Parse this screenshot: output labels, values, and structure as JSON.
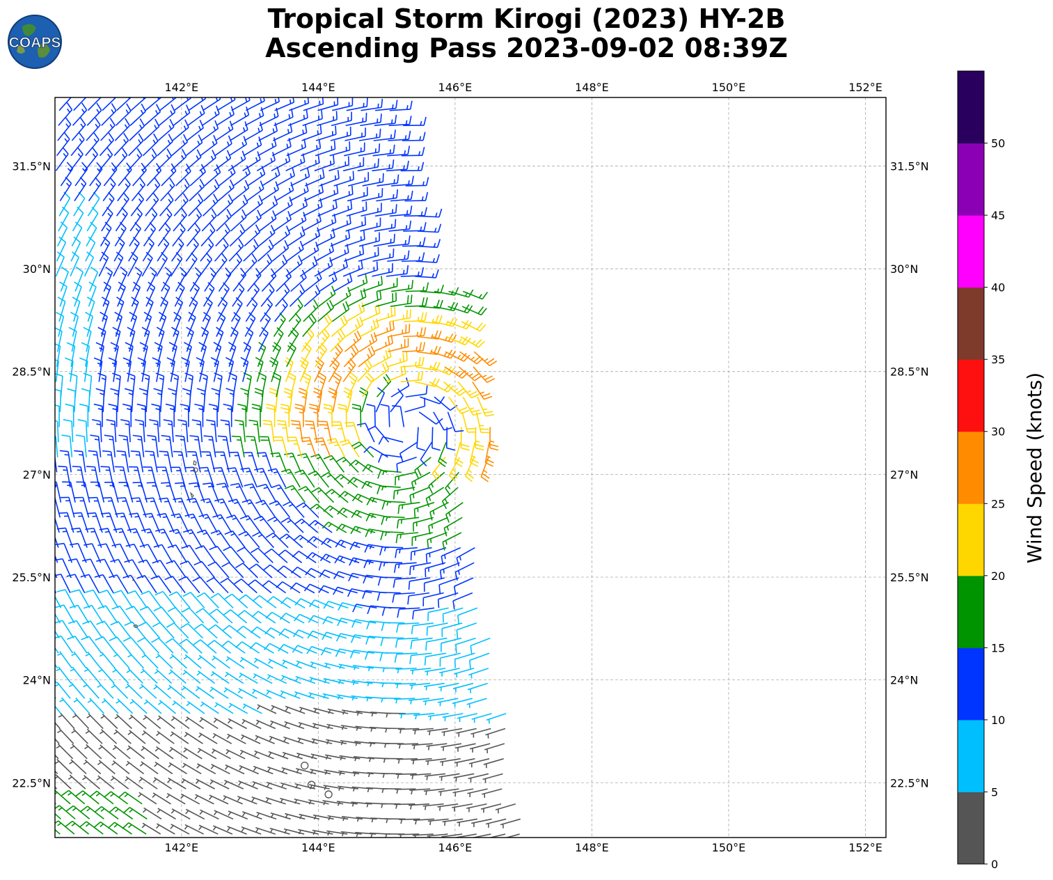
{
  "title": {
    "line1": "Tropical Storm Kirogi (2023) HY-2B",
    "line2": "Ascending Pass 2023-09-02 08:39Z"
  },
  "logo": {
    "text": "COAPS",
    "icon": "globe-logo-icon"
  },
  "map": {
    "lon_range": [
      140.15,
      152.3
    ],
    "lat_range": [
      21.7,
      32.5
    ],
    "lon_ticks": [
      142,
      144,
      146,
      148,
      150,
      152
    ],
    "lon_tick_labels": [
      "142°E",
      "144°E",
      "146°E",
      "148°E",
      "150°E",
      "152°E"
    ],
    "lat_ticks": [
      22.5,
      24,
      25.5,
      27,
      28.5,
      30,
      31.5
    ],
    "lat_tick_labels": [
      "22.5°N",
      "24°N",
      "25.5°N",
      "27°N",
      "28.5°N",
      "30°N",
      "31.5°N"
    ],
    "gridlines": true,
    "storm_center": [
      145.3,
      27.7
    ]
  },
  "colorbar": {
    "label": "Wind Speed (knots)",
    "tick_labels": [
      "0",
      "5",
      "10",
      "15",
      "20",
      "25",
      "30",
      "35",
      "40",
      "45",
      "50"
    ],
    "levels": [
      0,
      5,
      10,
      15,
      20,
      25,
      30,
      35,
      40,
      45,
      50,
      55
    ],
    "colors": [
      "#555555",
      "#00bfff",
      "#0034ff",
      "#009400",
      "#ffd700",
      "#ff8c00",
      "#ff1010",
      "#7e3b2b",
      "#ff00ff",
      "#8b00b5",
      "#2a005f"
    ]
  }
}
